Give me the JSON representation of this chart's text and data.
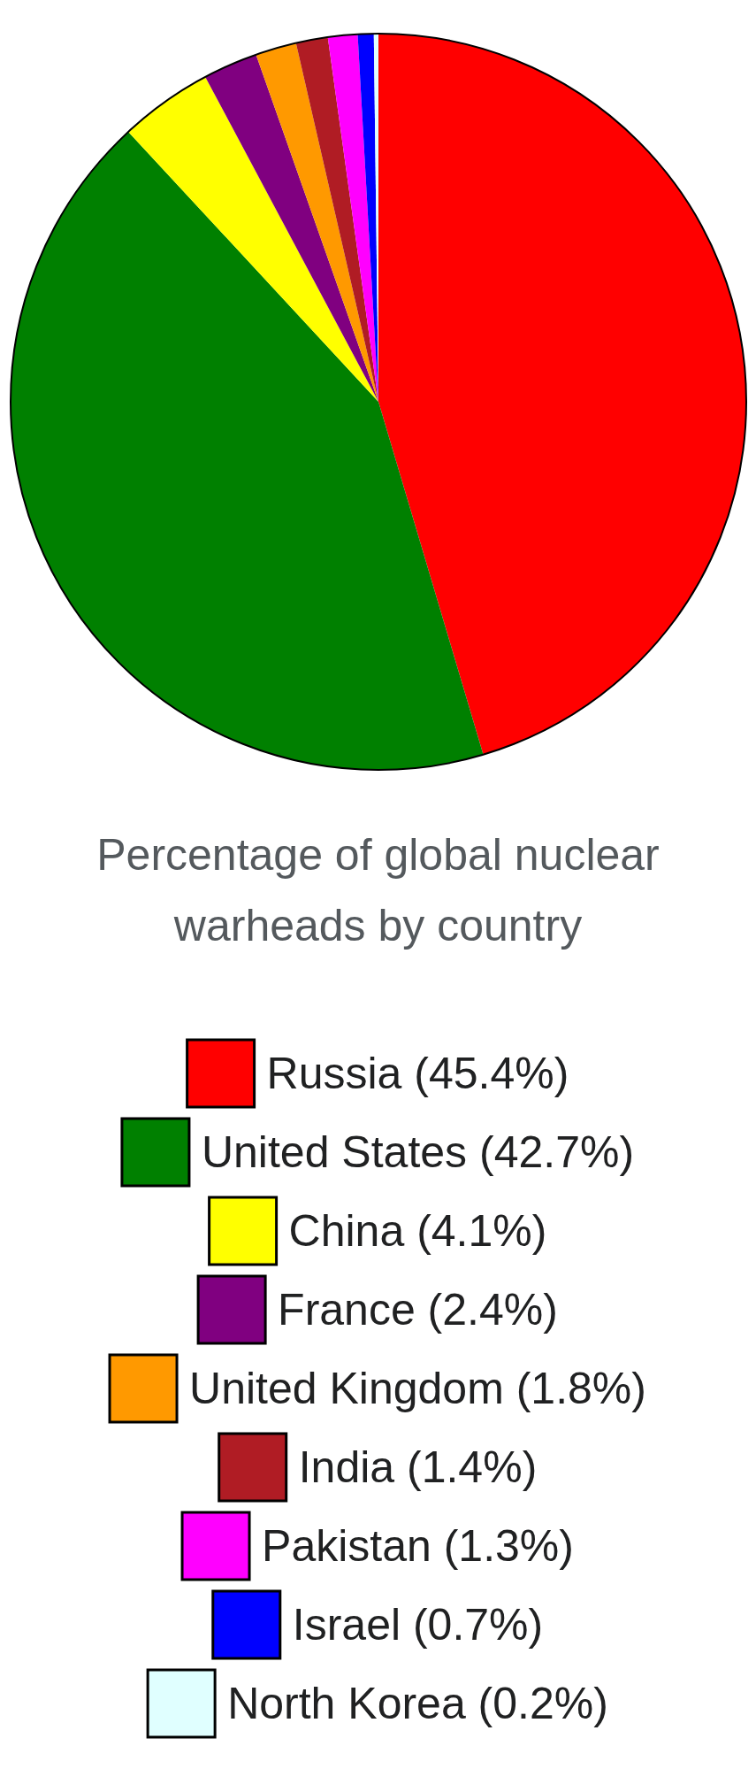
{
  "chart_data": {
    "type": "pie",
    "title": "Percentage of global nuclear warheads by country",
    "categories": [
      "Russia",
      "United States",
      "China",
      "France",
      "United Kingdom",
      "India",
      "Pakistan",
      "Israel",
      "North Korea"
    ],
    "values": [
      45.4,
      42.7,
      4.1,
      2.4,
      1.8,
      1.4,
      1.3,
      0.7,
      0.2
    ],
    "value_labels": [
      "(45.4%)",
      "(42.7%)",
      "(4.1%)",
      "(2.4%)",
      "(1.8%)",
      "(1.4%)",
      "(1.3%)",
      "(0.7%)",
      "(0.2%)"
    ],
    "colors": [
      "#ff0000",
      "#008000",
      "#ffff00",
      "#800080",
      "#ff9900",
      "#b01c24",
      "#ff00ff",
      "#0000ff",
      "#e0ffff"
    ],
    "legend": "bottom"
  }
}
